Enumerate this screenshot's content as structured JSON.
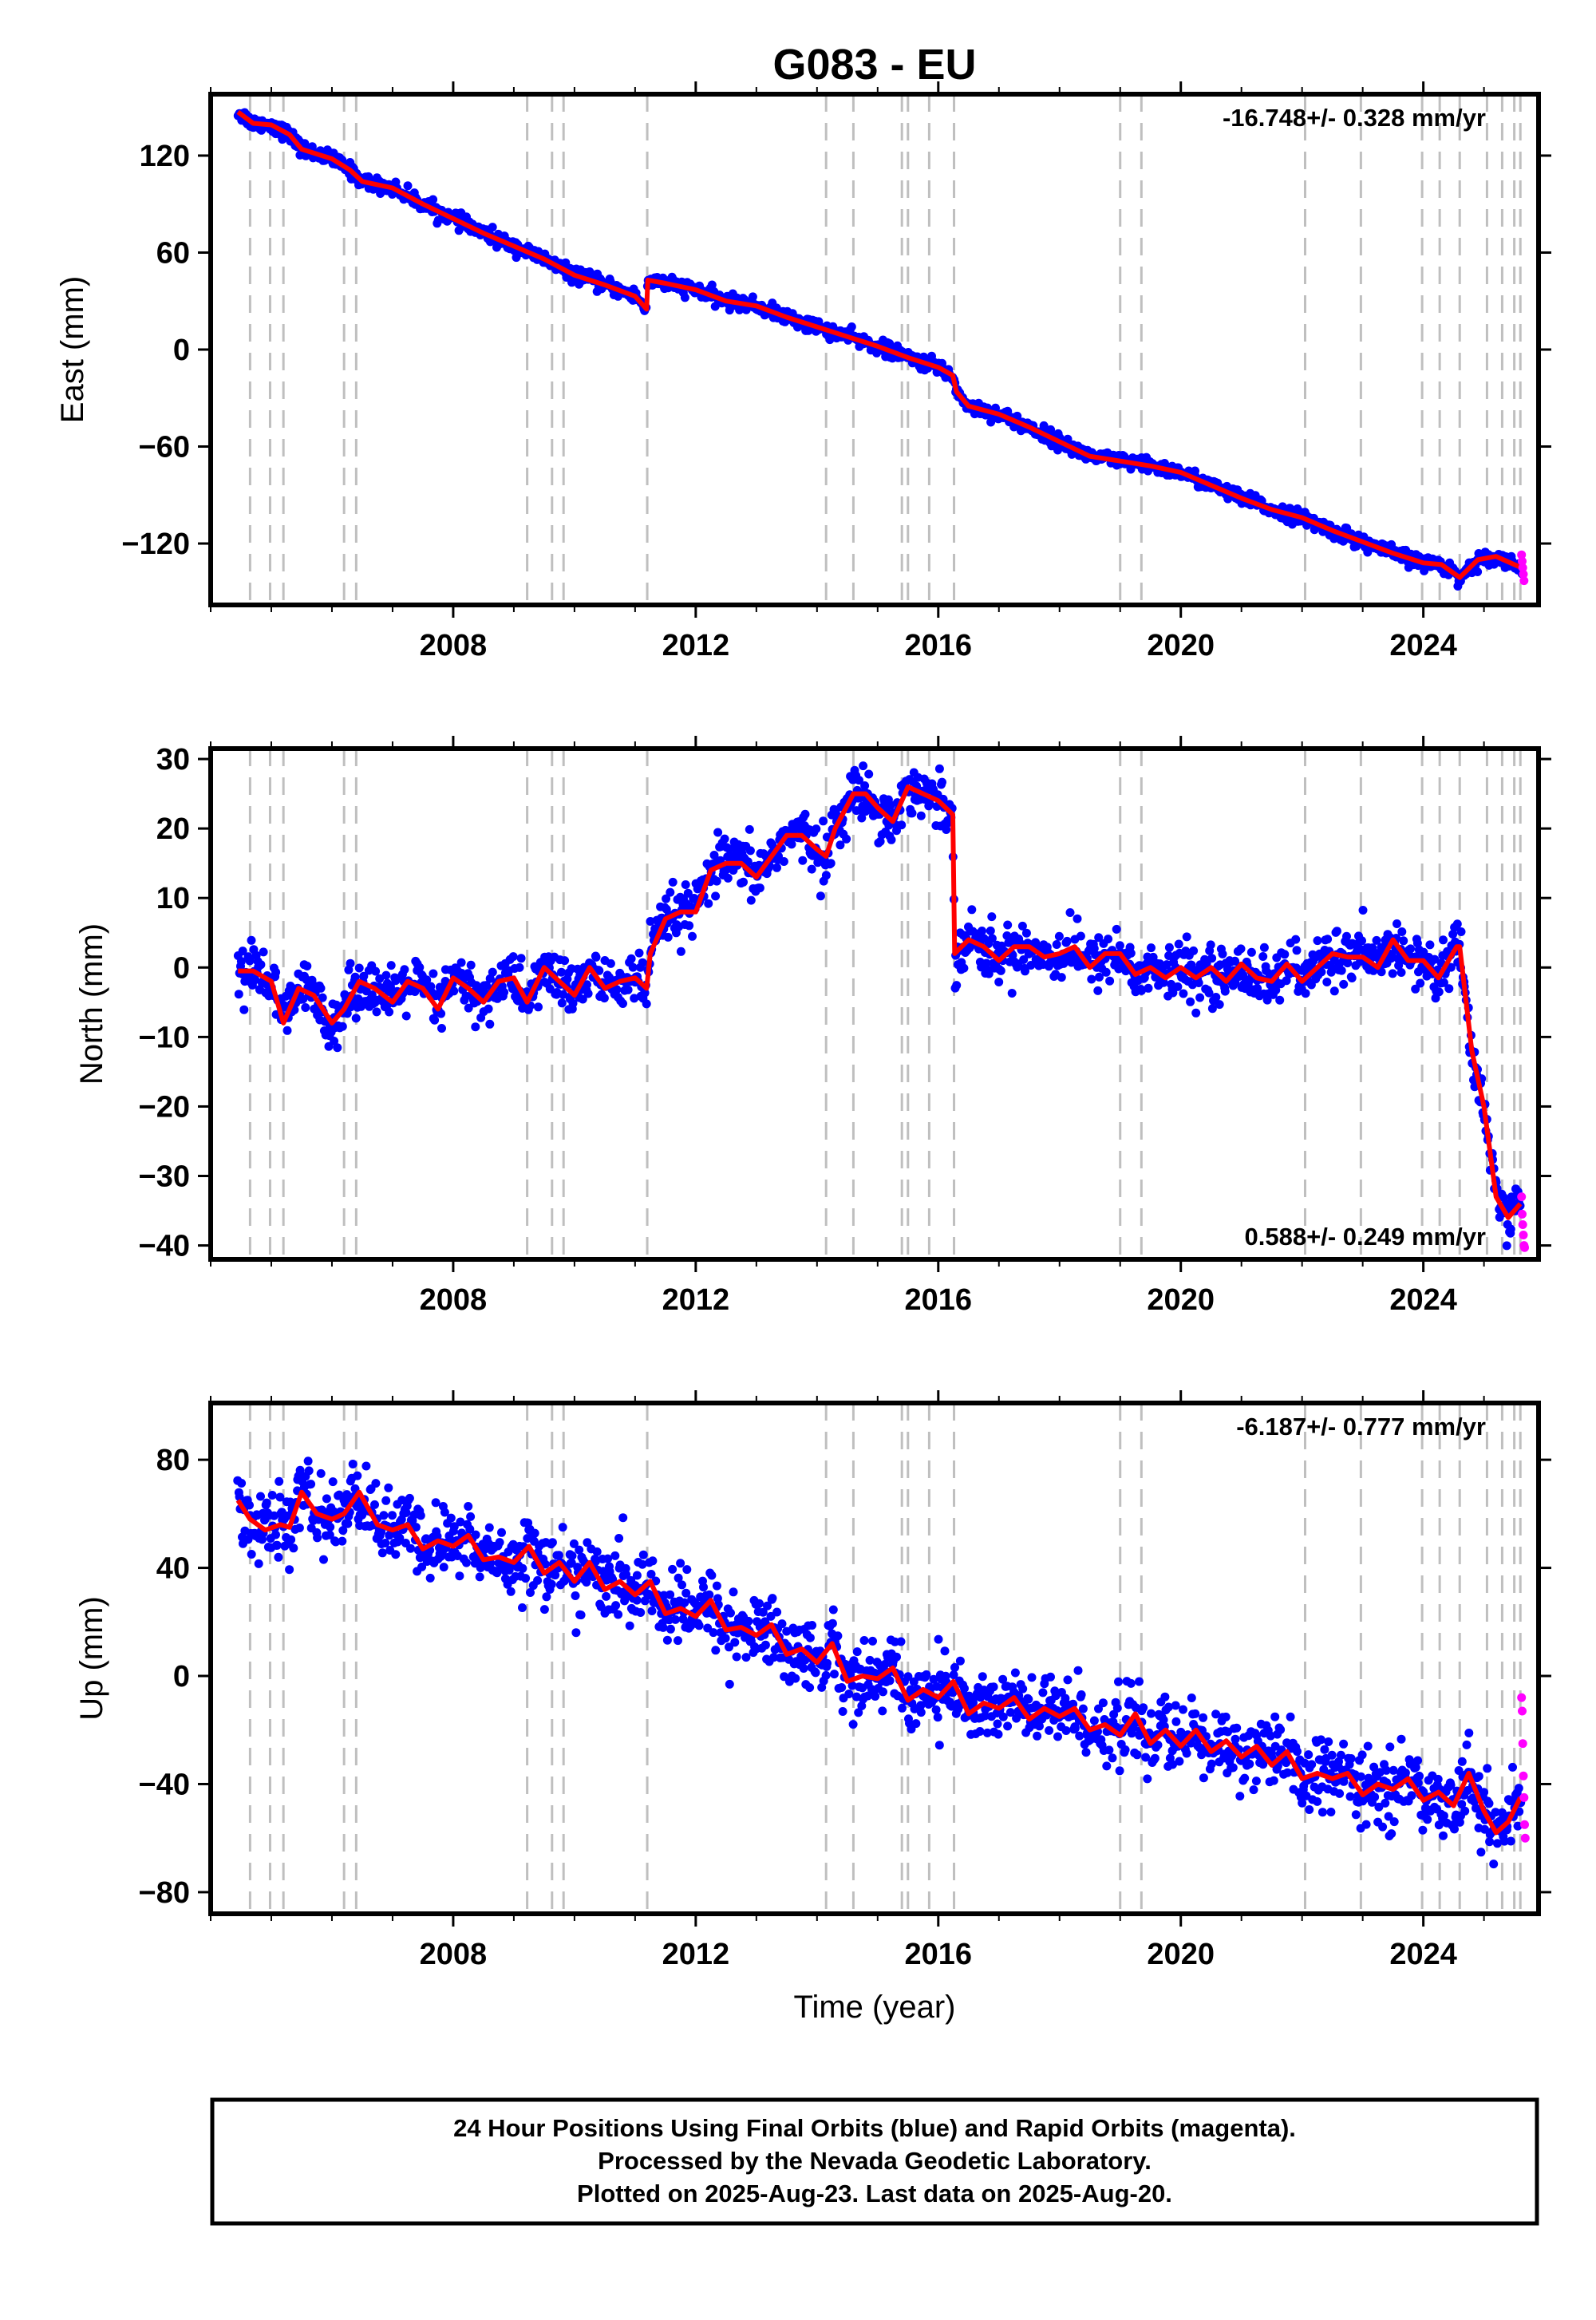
{
  "title": "G083 - EU",
  "xlabel": "Time (year)",
  "footer": {
    "lines": [
      "24 Hour Positions Using Final Orbits (blue) and Rapid Orbits (magenta).",
      "Processed by the Nevada Geodetic Laboratory.",
      "Plotted on 2025-Aug-23. Last data on 2025-Aug-20."
    ]
  },
  "colors": {
    "final_orbits": "#0000ff",
    "rapid_orbits": "#ff00ff",
    "model": "#ff0000",
    "event_lines": "#bfbfbf"
  },
  "chart_data": [
    {
      "id": "east",
      "type": "scatter",
      "ylabel": "East (mm)",
      "rate_label": "-16.748+/- 0.328 mm/yr",
      "rate_position": "top-right",
      "xlim": [
        2004.0,
        2025.9
      ],
      "ylim": [
        -158,
        158
      ],
      "xticks": [
        2008,
        2012,
        2016,
        2020,
        2024
      ],
      "yticks": [
        -120,
        -60,
        0,
        60,
        120
      ],
      "event_lines": [
        2004.65,
        2004.98,
        2005.2,
        2006.2,
        2006.4,
        2009.22,
        2009.63,
        2009.82,
        2011.2,
        2014.15,
        2014.6,
        2015.4,
        2015.5,
        2015.85,
        2016.26,
        2019.0,
        2019.35,
        2022.05,
        2022.97,
        2023.98,
        2024.27,
        2024.6,
        2025.05,
        2025.3,
        2025.5,
        2025.6
      ],
      "series": [
        {
          "role": "model",
          "x": [
            2004.45,
            2004.7,
            2005.0,
            2005.3,
            2005.5,
            2006.0,
            2006.3,
            2006.5,
            2007.0,
            2007.5,
            2008.0,
            2008.5,
            2009.0,
            2009.5,
            2010.0,
            2010.5,
            2011.0,
            2011.19,
            2011.21,
            2011.5,
            2012.0,
            2012.5,
            2013.0,
            2013.5,
            2014.0,
            2014.5,
            2015.0,
            2015.5,
            2016.0,
            2016.24,
            2016.3,
            2016.5,
            2017.0,
            2017.5,
            2018.0,
            2018.5,
            2019.0,
            2019.5,
            2020.0,
            2020.5,
            2021.0,
            2021.5,
            2022.0,
            2022.5,
            2023.0,
            2023.5,
            2024.0,
            2024.3,
            2024.6,
            2024.9,
            2025.2,
            2025.5,
            2025.62
          ],
          "y": [
            147,
            140,
            139,
            133,
            124,
            118,
            111,
            104,
            100,
            90,
            81,
            72,
            64,
            56,
            46,
            40,
            33,
            25,
            43,
            41,
            37,
            30,
            27,
            20,
            14,
            8,
            2,
            -5,
            -11,
            -16,
            -26,
            -35,
            -40,
            -48,
            -57,
            -66,
            -69,
            -72,
            -76,
            -84,
            -92,
            -99,
            -104,
            -112,
            -119,
            -126,
            -132,
            -133,
            -141,
            -130,
            -128,
            -133,
            -135
          ]
        },
        {
          "role": "rapid",
          "x": [
            2025.62,
            2025.63,
            2025.64,
            2025.65,
            2025.66
          ],
          "y": [
            -127,
            -131,
            -135,
            -139,
            -143
          ]
        }
      ]
    },
    {
      "id": "north",
      "type": "scatter",
      "ylabel": "North (mm)",
      "rate_label": "0.588+/- 0.249 mm/yr",
      "rate_position": "bottom-right",
      "xlim": [
        2004.0,
        2025.9
      ],
      "ylim": [
        -42,
        31.5
      ],
      "xticks": [
        2008,
        2012,
        2016,
        2020,
        2024
      ],
      "yticks": [
        -40,
        -30,
        -20,
        -10,
        0,
        10,
        20,
        30
      ],
      "event_lines": [
        2004.65,
        2004.98,
        2005.2,
        2006.2,
        2006.4,
        2009.22,
        2009.63,
        2009.82,
        2011.2,
        2014.15,
        2014.6,
        2015.4,
        2015.5,
        2015.85,
        2016.26,
        2019.0,
        2019.35,
        2022.05,
        2022.97,
        2023.98,
        2024.27,
        2024.6,
        2025.05,
        2025.3,
        2025.5,
        2025.6
      ],
      "series": [
        {
          "role": "model",
          "x": [
            2004.45,
            2004.7,
            2005.0,
            2005.2,
            2005.45,
            2005.7,
            2006.0,
            2006.2,
            2006.45,
            2006.7,
            2007.0,
            2007.25,
            2007.5,
            2007.75,
            2008.0,
            2008.25,
            2008.5,
            2008.75,
            2009.0,
            2009.22,
            2009.5,
            2009.75,
            2010.0,
            2010.25,
            2010.5,
            2010.75,
            2011.0,
            2011.19,
            2011.25,
            2011.5,
            2011.75,
            2012.0,
            2012.25,
            2012.5,
            2012.75,
            2013.0,
            2013.25,
            2013.5,
            2013.75,
            2014.0,
            2014.15,
            2014.3,
            2014.6,
            2014.8,
            2015.0,
            2015.25,
            2015.5,
            2015.75,
            2016.0,
            2016.24,
            2016.27,
            2016.5,
            2016.75,
            2017.0,
            2017.25,
            2017.5,
            2017.75,
            2018.0,
            2018.25,
            2018.5,
            2018.75,
            2019.0,
            2019.25,
            2019.5,
            2019.75,
            2020.0,
            2020.25,
            2020.5,
            2020.75,
            2021.0,
            2021.25,
            2021.5,
            2021.75,
            2022.0,
            2022.25,
            2022.5,
            2022.75,
            2023.0,
            2023.25,
            2023.5,
            2023.75,
            2024.0,
            2024.25,
            2024.55,
            2024.6,
            2024.8,
            2025.0,
            2025.2,
            2025.4,
            2025.6
          ],
          "y": [
            -0.5,
            -0.5,
            -2,
            -8,
            -3,
            -4,
            -8,
            -6,
            -2,
            -3,
            -5,
            -2,
            -3,
            -6,
            -1.5,
            -3,
            -5,
            -2,
            -1.5,
            -5,
            0,
            -2,
            -4,
            0,
            -3,
            -2,
            -1.5,
            -3,
            2,
            7,
            8,
            8,
            14,
            15,
            15,
            13,
            16,
            19,
            19,
            17,
            16,
            20,
            25,
            25,
            23,
            21,
            26,
            25,
            24,
            22,
            2,
            4,
            3,
            1,
            3,
            3,
            1.5,
            2,
            3,
            0,
            2,
            2,
            -1,
            0,
            -1.5,
            0,
            -1.5,
            0,
            -2,
            0.5,
            -1.5,
            -2,
            0.5,
            -2,
            0,
            2,
            1.5,
            1.5,
            0,
            4,
            1,
            1,
            -1.5,
            3,
            3,
            -12,
            -20,
            -33,
            -36,
            -34
          ]
        },
        {
          "role": "rapid",
          "x": [
            2025.62,
            2025.63,
            2025.64,
            2025.65,
            2025.66,
            2025.67
          ],
          "y": [
            -33,
            -35.5,
            -37,
            -38.5,
            -40,
            -40.3
          ]
        }
      ]
    },
    {
      "id": "up",
      "type": "scatter",
      "ylabel": "Up (mm)",
      "rate_label": "-6.187+/- 0.777 mm/yr",
      "rate_position": "top-right",
      "xlim": [
        2004.0,
        2025.9
      ],
      "ylim": [
        -88,
        101
      ],
      "xticks": [
        2008,
        2012,
        2016,
        2020,
        2024
      ],
      "yticks": [
        -80,
        -40,
        0,
        40,
        80
      ],
      "event_lines": [
        2004.65,
        2004.98,
        2005.2,
        2006.2,
        2006.4,
        2009.22,
        2009.63,
        2009.82,
        2011.2,
        2014.15,
        2014.6,
        2015.4,
        2015.5,
        2015.85,
        2016.26,
        2019.0,
        2019.35,
        2022.05,
        2022.97,
        2023.98,
        2024.27,
        2024.6,
        2025.05,
        2025.3,
        2025.5,
        2025.6
      ],
      "series": [
        {
          "role": "model",
          "x": [
            2004.45,
            2004.65,
            2004.9,
            2005.15,
            2005.3,
            2005.5,
            2005.75,
            2006.0,
            2006.2,
            2006.45,
            2006.75,
            2007.0,
            2007.25,
            2007.5,
            2007.75,
            2008.0,
            2008.25,
            2008.5,
            2008.75,
            2009.0,
            2009.25,
            2009.5,
            2009.75,
            2010.0,
            2010.25,
            2010.5,
            2010.75,
            2011.0,
            2011.25,
            2011.5,
            2011.75,
            2012.0,
            2012.25,
            2012.5,
            2012.75,
            2013.0,
            2013.25,
            2013.5,
            2013.75,
            2014.0,
            2014.25,
            2014.5,
            2014.75,
            2015.0,
            2015.25,
            2015.5,
            2015.75,
            2016.0,
            2016.25,
            2016.5,
            2016.75,
            2017.0,
            2017.25,
            2017.5,
            2017.75,
            2018.0,
            2018.25,
            2018.5,
            2018.75,
            2019.0,
            2019.25,
            2019.5,
            2019.75,
            2020.0,
            2020.25,
            2020.5,
            2020.75,
            2021.0,
            2021.25,
            2021.5,
            2021.75,
            2022.0,
            2022.25,
            2022.5,
            2022.75,
            2023.0,
            2023.25,
            2023.5,
            2023.75,
            2024.0,
            2024.25,
            2024.5,
            2024.75,
            2025.0,
            2025.2,
            2025.4,
            2025.6
          ],
          "y": [
            65,
            58,
            54,
            56,
            55,
            68,
            60,
            58,
            60,
            68,
            56,
            54,
            56,
            47,
            50,
            48,
            52,
            43,
            44,
            42,
            48,
            38,
            42,
            35,
            42,
            32,
            35,
            30,
            35,
            23,
            25,
            22,
            28,
            17,
            18,
            15,
            19,
            8,
            10,
            5,
            12,
            -2,
            0,
            -1,
            3,
            -9,
            -5,
            -8,
            -2,
            -14,
            -10,
            -12,
            -8,
            -16,
            -12,
            -15,
            -12,
            -20,
            -18,
            -22,
            -14,
            -25,
            -20,
            -26,
            -20,
            -28,
            -24,
            -30,
            -26,
            -33,
            -28,
            -38,
            -36,
            -38,
            -36,
            -44,
            -40,
            -42,
            -38,
            -46,
            -43,
            -48,
            -36,
            -50,
            -58,
            -54,
            -45
          ]
        },
        {
          "role": "rapid",
          "x": [
            2025.62,
            2025.63,
            2025.64,
            2025.65,
            2025.66,
            2025.67,
            2025.68
          ],
          "y": [
            -8,
            -13,
            -25,
            -37,
            -45,
            -55,
            -60
          ]
        }
      ]
    }
  ]
}
